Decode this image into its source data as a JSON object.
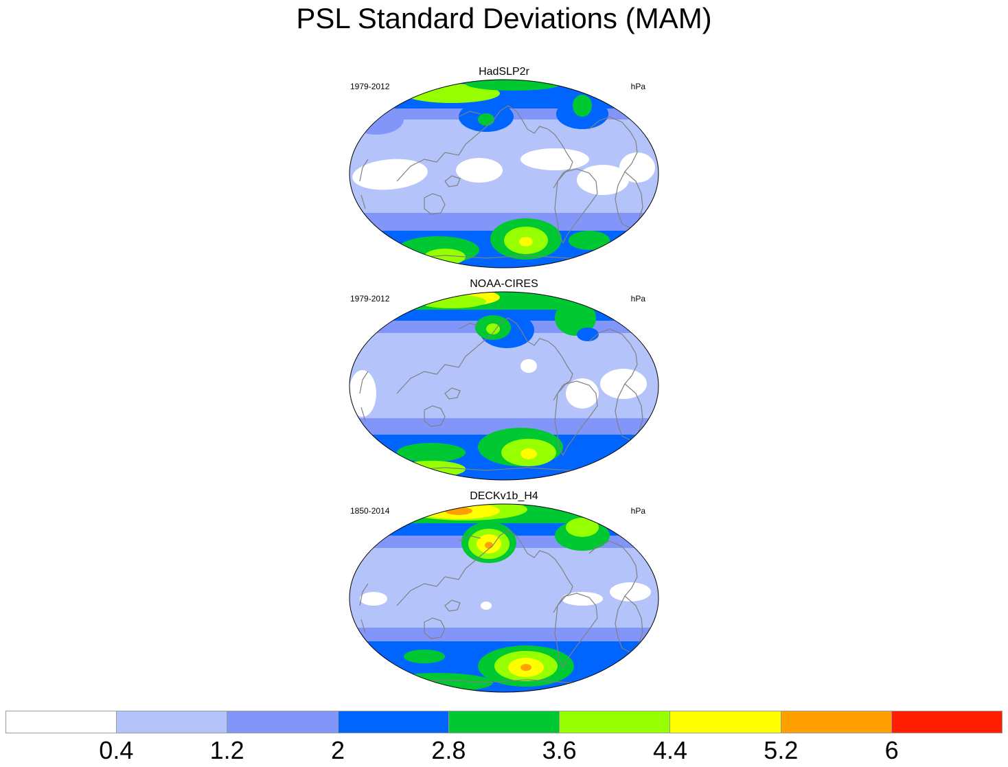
{
  "title": "PSL Standard Deviations (MAM)",
  "panels": [
    {
      "title": "HadSLP2r",
      "years": "1979-2012",
      "units": "hPa"
    },
    {
      "title": "NOAA-CIRES",
      "years": "1979-2012",
      "units": "hPa"
    },
    {
      "title": "DECKv1b_H4",
      "years": "1850-2014",
      "units": "hPa"
    }
  ],
  "colorbar": {
    "labels": [
      "0.4",
      "1.2",
      "2",
      "2.8",
      "3.6",
      "4.4",
      "5.2",
      "6"
    ],
    "colors": [
      "#ffffff",
      "#b4c3fa",
      "#8296fa",
      "#0064ff",
      "#00c832",
      "#96ff00",
      "#ffff00",
      "#ffa000",
      "#ff1e00"
    ]
  },
  "colors": {
    "coast": "#808080",
    "outline": "#000000"
  }
}
